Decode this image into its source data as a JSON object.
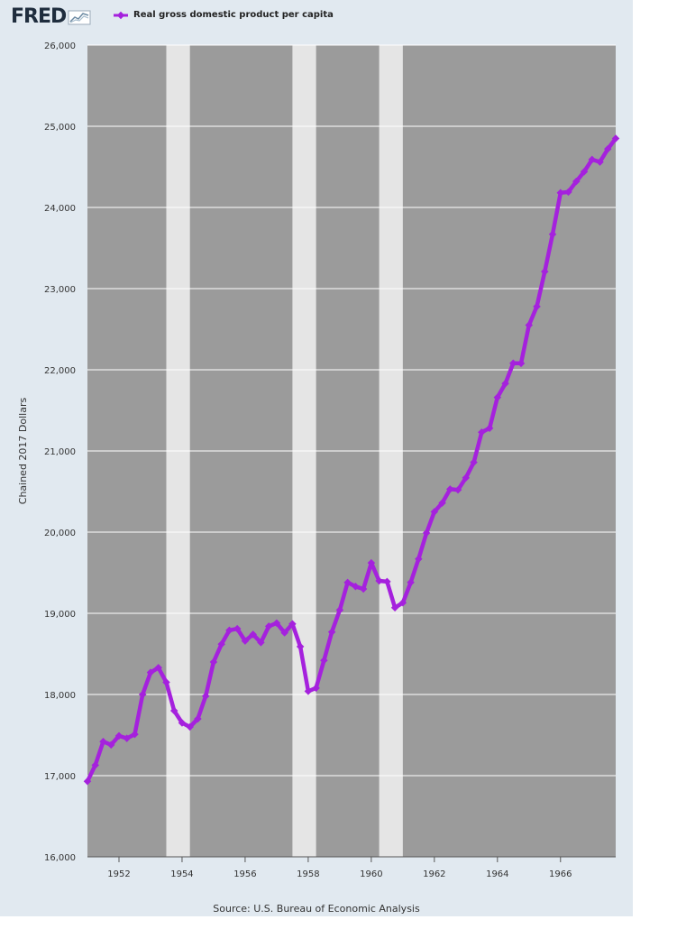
{
  "header": {
    "logo_text": "FRED",
    "logo_icon": "fred-graph-icon",
    "legend_label": "Real gross domestic product per capita",
    "legend_color": "#a521dd"
  },
  "source": "Source: U.S. Bureau of Economic Analysis",
  "colors": {
    "frame": "#e1e9f0",
    "plot_background": "#9b9b9b",
    "recession_band": "#e5e5e5",
    "gridline": "#ffffff",
    "series": "#a521dd"
  },
  "chart_data": {
    "type": "line",
    "title": "",
    "xlabel": "",
    "ylabel": "Chained 2017 Dollars",
    "xlim": [
      1951.0,
      1967.75
    ],
    "ylim": [
      16000,
      26000
    ],
    "grid": true,
    "legend_position": "top-left",
    "x_ticks": [
      1952,
      1954,
      1956,
      1958,
      1960,
      1962,
      1964,
      1966
    ],
    "x_tick_labels": [
      "1952",
      "1954",
      "1956",
      "1958",
      "1960",
      "1962",
      "1964",
      "1966"
    ],
    "y_ticks": [
      16000,
      17000,
      18000,
      19000,
      20000,
      21000,
      22000,
      23000,
      24000,
      25000,
      26000
    ],
    "y_tick_labels": [
      "16,000",
      "17,000",
      "18,000",
      "19,000",
      "20,000",
      "21,000",
      "22,000",
      "23,000",
      "24,000",
      "25,000",
      "26,000"
    ],
    "recessions": [
      [
        1953.5,
        1954.25
      ],
      [
        1957.5,
        1958.25
      ],
      [
        1960.25,
        1961.0
      ]
    ],
    "series": [
      {
        "name": "Real gross domestic product per capita",
        "x": [
          "1951Q1",
          "1951Q2",
          "1951Q3",
          "1951Q4",
          "1952Q1",
          "1952Q2",
          "1952Q3",
          "1952Q4",
          "1953Q1",
          "1953Q2",
          "1953Q3",
          "1953Q4",
          "1954Q1",
          "1954Q2",
          "1954Q3",
          "1954Q4",
          "1955Q1",
          "1955Q2",
          "1955Q3",
          "1955Q4",
          "1956Q1",
          "1956Q2",
          "1956Q3",
          "1956Q4",
          "1957Q1",
          "1957Q2",
          "1957Q3",
          "1957Q4",
          "1958Q1",
          "1958Q2",
          "1958Q3",
          "1958Q4",
          "1959Q1",
          "1959Q2",
          "1959Q3",
          "1959Q4",
          "1960Q1",
          "1960Q2",
          "1960Q3",
          "1960Q4",
          "1961Q1",
          "1961Q2",
          "1961Q3",
          "1961Q4",
          "1962Q1",
          "1962Q2",
          "1962Q3",
          "1962Q4",
          "1963Q1",
          "1963Q2",
          "1963Q3",
          "1963Q4",
          "1964Q1",
          "1964Q2",
          "1964Q3",
          "1964Q4",
          "1965Q1",
          "1965Q2",
          "1965Q3",
          "1965Q4",
          "1966Q1",
          "1966Q2",
          "1966Q3",
          "1966Q4",
          "1967Q1",
          "1967Q2",
          "1967Q3",
          "1967Q4"
        ],
        "values": [
          16930,
          17130,
          17420,
          17380,
          17490,
          17460,
          17510,
          18000,
          18270,
          18330,
          18150,
          17800,
          17650,
          17600,
          17700,
          17980,
          18400,
          18620,
          18790,
          18810,
          18660,
          18740,
          18640,
          18840,
          18880,
          18760,
          18870,
          18590,
          18040,
          18080,
          18420,
          18770,
          19040,
          19380,
          19330,
          19300,
          19620,
          19400,
          19390,
          19070,
          19130,
          19380,
          19670,
          19990,
          20250,
          20360,
          20530,
          20520,
          20670,
          20860,
          21230,
          21280,
          21660,
          21830,
          22080,
          22080,
          22550,
          22780,
          23210,
          23670,
          24180,
          24190,
          24320,
          24440,
          24590,
          24560,
          24720,
          24850
        ]
      }
    ]
  }
}
